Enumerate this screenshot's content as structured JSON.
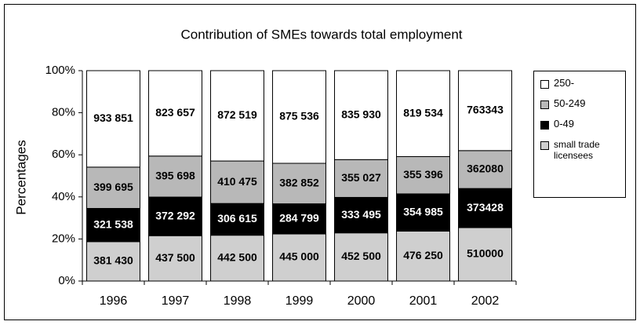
{
  "chart_data": {
    "type": "bar",
    "stacking": "percent",
    "title": "Contribution of SMEs towards total employment",
    "y_label": "Percentages",
    "categories": [
      "1996",
      "1997",
      "1998",
      "1999",
      "2000",
      "2001",
      "2002"
    ],
    "series": [
      {
        "name": "small trade licensees",
        "color": "#cfcfcf",
        "values": [
          381430,
          437500,
          442500,
          445000,
          452500,
          476250,
          510000
        ],
        "value_labels": [
          "381 430",
          "437 500",
          "442 500",
          "445 000",
          "452 500",
          "476 250",
          "510000"
        ]
      },
      {
        "name": "0-49",
        "color": "#000000",
        "values": [
          321538,
          372292,
          306615,
          284799,
          333495,
          354985,
          373428
        ],
        "value_labels": [
          "321 538",
          "372 292",
          "306 615",
          "284 799",
          "333 495",
          "354 985",
          "373428"
        ]
      },
      {
        "name": "50-249",
        "color": "#b8b8b8",
        "values": [
          399695,
          395698,
          410475,
          382852,
          355027,
          355396,
          362080
        ],
        "value_labels": [
          "399 695",
          "395 698",
          "410 475",
          "382 852",
          "355 027",
          "355 396",
          "362080"
        ]
      },
      {
        "name": "250-",
        "color": "#ffffff",
        "values": [
          933851,
          823657,
          872519,
          875536,
          835930,
          819534,
          763343
        ],
        "value_labels": [
          "933 851",
          "823 657",
          "872 519",
          "875 536",
          "835 930",
          "819 534",
          "763343"
        ]
      }
    ],
    "ylim": [
      0,
      100
    ],
    "yticks": [
      {
        "value": 0,
        "label": "0%"
      },
      {
        "value": 20,
        "label": "20%"
      },
      {
        "value": 40,
        "label": "40%"
      },
      {
        "value": 60,
        "label": "60%"
      },
      {
        "value": 80,
        "label": "80%"
      },
      {
        "value": 100,
        "label": "100%"
      }
    ],
    "legend": "right"
  }
}
